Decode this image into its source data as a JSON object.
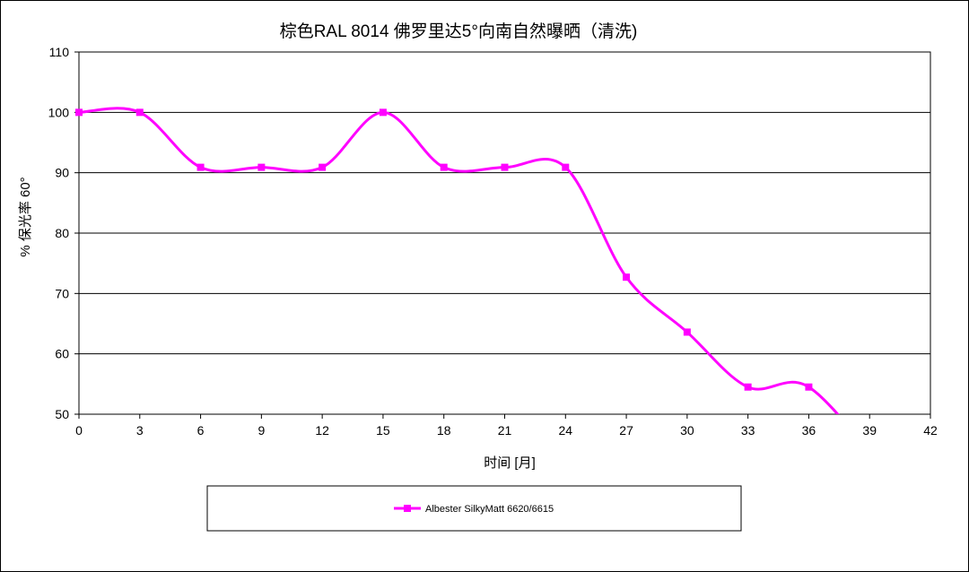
{
  "chart_data": {
    "type": "line",
    "title": "棕色RAL 8014 佛罗里达5°向南自然曝晒（清洗)",
    "xlabel": "时间 [月]",
    "ylabel": "% 保光率 60°",
    "xlim": [
      0,
      42
    ],
    "ylim": [
      50,
      110
    ],
    "x_ticks": [
      "0",
      "3",
      "6",
      "9",
      "12",
      "15",
      "18",
      "21",
      "24",
      "27",
      "30",
      "33",
      "36",
      "39",
      "42"
    ],
    "y_ticks": [
      "50",
      "60",
      "70",
      "80",
      "90",
      "100",
      "110"
    ],
    "grid": "horizontal",
    "legend_position": "bottom",
    "series": [
      {
        "name": "Albester SilkyMatt 6620/6615",
        "color": "#ff00ff",
        "x": [
          0,
          3,
          6,
          9,
          12,
          15,
          18,
          21,
          24,
          27,
          30,
          33,
          36
        ],
        "y": [
          100,
          100,
          90.9,
          90.9,
          90.9,
          100,
          90.9,
          90.9,
          90.9,
          72.7,
          63.6,
          54.5,
          54.5
        ]
      }
    ]
  }
}
